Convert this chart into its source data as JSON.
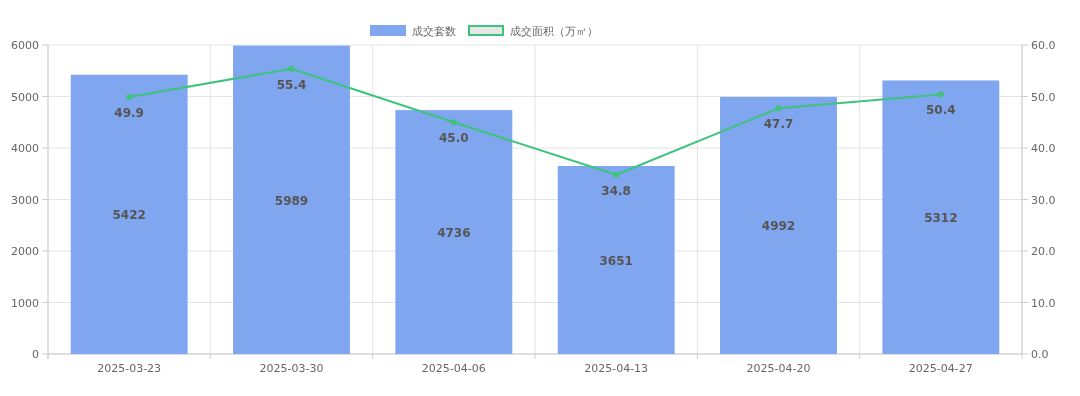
{
  "chart_data": {
    "type": "bar",
    "categories": [
      "2025-03-23",
      "2025-03-30",
      "2025-04-06",
      "2025-04-13",
      "2025-04-20",
      "2025-04-27"
    ],
    "series": [
      {
        "name": "成交套数",
        "color": "#7fa6ee",
        "values": [
          5422,
          5989,
          4736,
          3651,
          4992,
          5312
        ]
      },
      {
        "name": "成交面积（万㎡）",
        "type": "line",
        "axis": "y2",
        "color": "#3cc47c",
        "values": [
          49.9,
          55.4,
          45.0,
          34.8,
          47.7,
          50.4
        ],
        "value_labels": [
          "49.9",
          "55.4",
          "45.0",
          "34.8",
          "47.7",
          "50.4"
        ]
      }
    ],
    "ylim": [
      0,
      6000
    ],
    "yticks": [
      0,
      1000,
      2000,
      3000,
      4000,
      5000,
      6000
    ],
    "y2lim": [
      0,
      60
    ],
    "y2ticks": [
      {
        "value": 0,
        "label": "0.0"
      },
      {
        "value": 10,
        "label": "10.0"
      },
      {
        "value": 20,
        "label": "20.0"
      },
      {
        "value": 30,
        "label": "30.0"
      },
      {
        "value": 40,
        "label": "40.0"
      },
      {
        "value": 50,
        "label": "50.0"
      },
      {
        "value": 60,
        "label": "60.0"
      }
    ],
    "data_labels": true,
    "grid": true,
    "legend": "top",
    "marker": "circle"
  }
}
